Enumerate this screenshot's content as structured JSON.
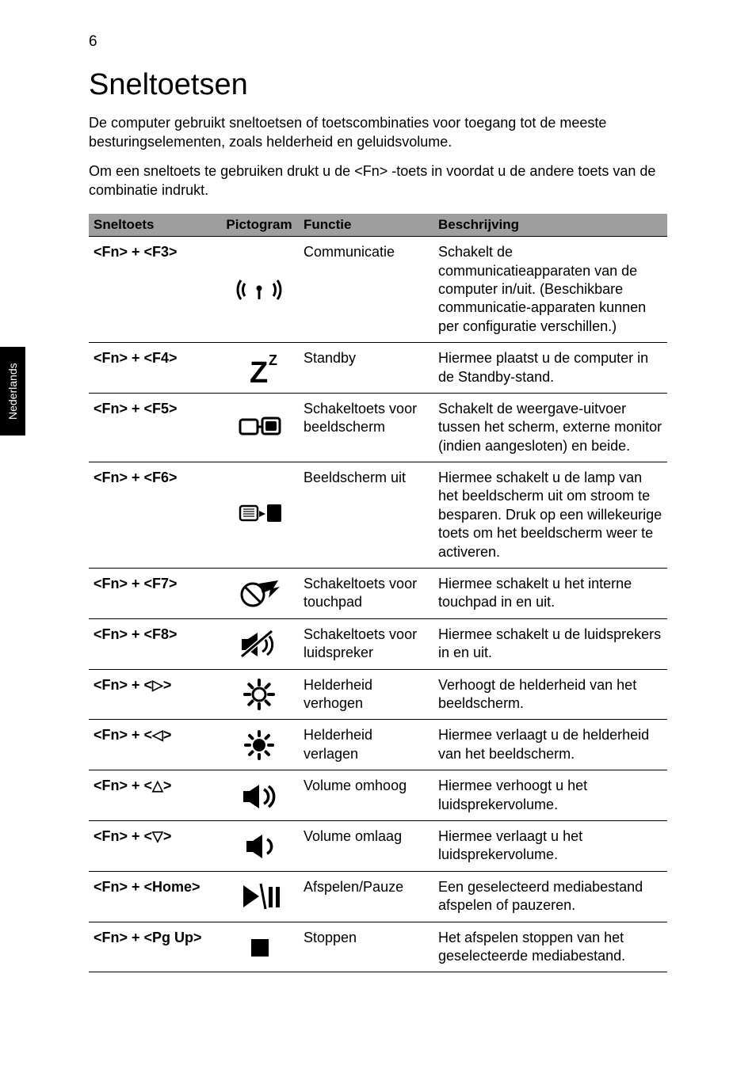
{
  "page_number": "6",
  "side_tab": "Nederlands",
  "heading": "Sneltoetsen",
  "intro_1": "De computer gebruikt sneltoetsen of toetscombinaties voor toegang tot de meeste besturingselementen, zoals helderheid en geluidsvolume.",
  "intro_2": "Om een sneltoets te gebruiken drukt u de <Fn> -toets in voordat u de andere toets van de combinatie indrukt.",
  "headers": {
    "c0": "Sneltoets",
    "c1": "Pictogram",
    "c2": "Functie",
    "c3": "Beschrijving"
  },
  "rows": [
    {
      "key": "<Fn> + <F3>",
      "icon": "wifi",
      "func": "Communicatie",
      "desc": "Schakelt de communicatieapparaten van de computer in/uit. (Beschikbare communicatie-apparaten kunnen per configuratie verschillen.)"
    },
    {
      "key": "<Fn> + <F4>",
      "icon": "sleep",
      "func": "Standby",
      "desc": "Hiermee plaatst u de computer in de Standby-stand."
    },
    {
      "key": "<Fn> + <F5>",
      "icon": "display-toggle",
      "func": "Schakeltoets voor beeldscherm",
      "desc": "Schakelt de weergave-uitvoer tussen het scherm, externe monitor (indien aangesloten) en beide."
    },
    {
      "key": "<Fn> + <F6>",
      "icon": "screen-off",
      "func": "Beeldscherm uit",
      "desc": "Hiermee schakelt u de lamp van het beeldscherm uit om stroom te besparen. Druk op een willekeurige toets om het beeldscherm weer te activeren."
    },
    {
      "key": "<Fn> + <F7>",
      "icon": "touchpad",
      "func": "Schakeltoets voor touchpad",
      "desc": "Hiermee schakelt u het interne touchpad in en uit."
    },
    {
      "key": "<Fn> + <F8>",
      "icon": "speaker-mute",
      "func": "Schakeltoets voor luidspreker",
      "desc": "Hiermee schakelt u de luidsprekers in en uit."
    },
    {
      "key": "<Fn> + <▷>",
      "icon": "bright-up",
      "func": "Helderheid verhogen",
      "desc": "Verhoogt de helderheid van het beeldscherm."
    },
    {
      "key": "<Fn> + <◁>",
      "icon": "bright-down",
      "func": "Helderheid verlagen",
      "desc": "Hiermee verlaagt u de helderheid van het beeldscherm."
    },
    {
      "key": "<Fn> + <△>",
      "icon": "vol-up",
      "func": "Volume omhoog",
      "desc": "Hiermee verhoogt u het luidsprekervolume."
    },
    {
      "key": "<Fn> + <▽>",
      "icon": "vol-down",
      "func": "Volume omlaag",
      "desc": "Hiermee verlaagt u het luidsprekervolume."
    },
    {
      "key": "<Fn> + <Home>",
      "icon": "play-pause",
      "func": "Afspelen/Pauze",
      "desc": "Een geselecteerd mediabestand afspelen of pauzeren."
    },
    {
      "key": "<Fn> + <Pg Up>",
      "icon": "stop",
      "func": "Stoppen",
      "desc": "Het afspelen stoppen van het geselecteerde mediabestand."
    }
  ]
}
